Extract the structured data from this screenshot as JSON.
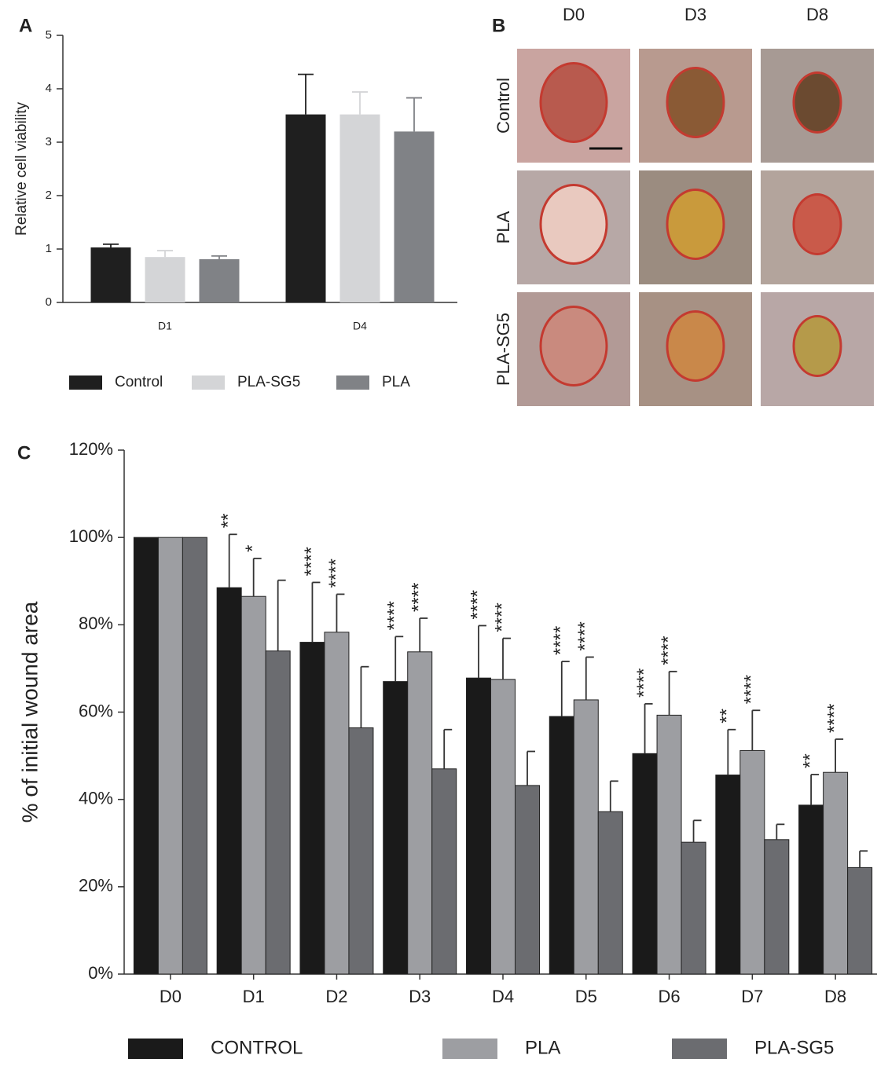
{
  "chart_data": [
    {
      "type": "bar",
      "panel": "A",
      "y_label": "Relative cell viability",
      "categories": [
        "D1",
        "D4"
      ],
      "series": [
        {
          "name": "Control",
          "color": "#1f1f1f",
          "values": [
            1.03,
            3.52
          ],
          "errors": [
            0.06,
            0.75
          ]
        },
        {
          "name": "PLA-SG5",
          "color": "#d4d5d7",
          "values": [
            0.85,
            3.52
          ],
          "errors": [
            0.12,
            0.42
          ]
        },
        {
          "name": "PLA",
          "color": "#808286",
          "values": [
            0.81,
            3.2
          ],
          "errors": [
            0.06,
            0.63
          ]
        }
      ],
      "ylim": [
        0,
        5
      ],
      "yticks": [
        0,
        1,
        2,
        3,
        4,
        5
      ],
      "legend": "bottom"
    },
    {
      "type": "bar",
      "panel": "C",
      "y_label": "% of initial wound area",
      "categories": [
        "D0",
        "D1",
        "D2",
        "D3",
        "D4",
        "D5",
        "D6",
        "D7",
        "D8"
      ],
      "series": [
        {
          "name": "CONTROL",
          "color": "#1a1a1a",
          "values": [
            100,
            88.5,
            76,
            67,
            67.8,
            59,
            50.5,
            45.6,
            38.7
          ],
          "errors": [
            null,
            12.2,
            13.7,
            10.3,
            12,
            12.6,
            11.4,
            10.4,
            7
          ],
          "annotations": [
            null,
            "**",
            "****",
            "****",
            "****",
            "****",
            "****",
            "**",
            "**"
          ]
        },
        {
          "name": "PLA",
          "color": "#9d9ea2",
          "values": [
            100,
            86.5,
            78.3,
            73.8,
            67.5,
            62.8,
            59.3,
            51.2,
            46.2
          ],
          "errors": [
            null,
            8.7,
            8.7,
            7.7,
            9.4,
            9.8,
            10,
            9.2,
            7.6
          ],
          "annotations": [
            null,
            "*",
            "****",
            "****",
            "****",
            "****",
            "****",
            "****",
            "****"
          ]
        },
        {
          "name": "PLA-SG5",
          "color": "#6b6c70",
          "values": [
            100,
            74,
            56.4,
            47,
            43.2,
            37.2,
            30.2,
            30.8,
            24.4
          ],
          "errors": [
            null,
            16.2,
            14,
            9,
            7.8,
            7,
            5,
            3.5,
            3.8
          ]
        }
      ],
      "ylim": [
        0,
        120
      ],
      "yticks": [
        {
          "value": 0,
          "label": "0%"
        },
        {
          "value": 20,
          "label": "20%"
        },
        {
          "value": 40,
          "label": "40%"
        },
        {
          "value": 60,
          "label": "60%"
        },
        {
          "value": 80,
          "label": "80%"
        },
        {
          "value": 100,
          "label": "100%"
        },
        {
          "value": 120,
          "label": "120%"
        }
      ],
      "legend": "bottom"
    }
  ],
  "panel_b": {
    "label": "B",
    "columns": [
      "D0",
      "D3",
      "D8"
    ],
    "rows": [
      "Control",
      "PLA",
      "PLA-SG5"
    ]
  }
}
